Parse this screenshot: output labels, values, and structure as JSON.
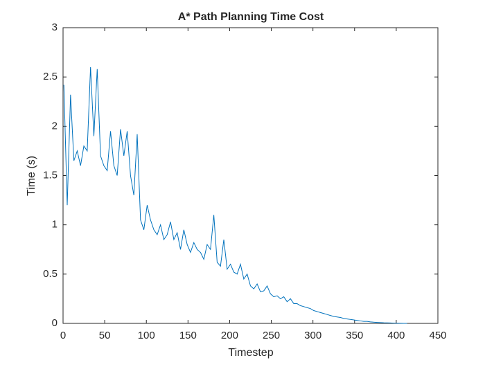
{
  "chart_data": {
    "type": "line",
    "title": "A* Path Planning Time Cost",
    "xlabel": "Timestep",
    "ylabel": "Time (s)",
    "color": "#0072bd",
    "grid": false,
    "x": [
      1,
      5,
      9,
      13,
      17,
      21,
      25,
      29,
      33,
      37,
      41,
      45,
      49,
      53,
      57,
      61,
      65,
      69,
      73,
      77,
      81,
      85,
      89,
      93,
      97,
      101,
      105,
      109,
      113,
      117,
      121,
      125,
      129,
      133,
      137,
      141,
      145,
      149,
      153,
      157,
      161,
      165,
      169,
      173,
      177,
      181,
      185,
      189,
      193,
      197,
      201,
      205,
      209,
      213,
      217,
      221,
      225,
      229,
      233,
      237,
      241,
      245,
      249,
      253,
      257,
      261,
      265,
      269,
      273,
      277,
      281,
      285,
      289,
      293,
      297,
      301,
      305,
      309,
      313,
      317,
      321,
      325,
      329,
      333,
      337,
      341,
      345,
      349,
      353,
      357,
      361,
      365,
      369,
      373,
      377,
      381,
      385,
      389,
      393,
      397,
      401,
      405,
      409,
      413
    ],
    "values": [
      2.42,
      1.2,
      2.32,
      1.65,
      1.75,
      1.6,
      1.8,
      1.75,
      2.6,
      1.9,
      2.58,
      1.7,
      1.6,
      1.55,
      1.95,
      1.6,
      1.5,
      1.97,
      1.7,
      1.95,
      1.5,
      1.3,
      1.92,
      1.05,
      0.95,
      1.2,
      1.05,
      0.95,
      0.9,
      1.0,
      0.85,
      0.9,
      1.03,
      0.85,
      0.92,
      0.75,
      0.95,
      0.8,
      0.72,
      0.82,
      0.75,
      0.72,
      0.65,
      0.8,
      0.75,
      1.1,
      0.62,
      0.58,
      0.85,
      0.55,
      0.6,
      0.52,
      0.5,
      0.6,
      0.45,
      0.5,
      0.38,
      0.35,
      0.4,
      0.32,
      0.33,
      0.38,
      0.3,
      0.27,
      0.28,
      0.25,
      0.27,
      0.22,
      0.25,
      0.2,
      0.2,
      0.18,
      0.17,
      0.16,
      0.15,
      0.13,
      0.12,
      0.11,
      0.1,
      0.09,
      0.08,
      0.07,
      0.065,
      0.06,
      0.05,
      0.045,
      0.04,
      0.035,
      0.03,
      0.025,
      0.02,
      0.02,
      0.015,
      0.012,
      0.01,
      0.008,
      0.006,
      0.005,
      0.004,
      0.003,
      0.002,
      0.001,
      0,
      0
    ],
    "xlim": [
      0,
      450
    ],
    "xticks": [
      0,
      50,
      100,
      150,
      200,
      250,
      300,
      350,
      400,
      450
    ],
    "ylim": [
      0,
      3
    ],
    "yticks": [
      0,
      0.5,
      1,
      1.5,
      2,
      2.5,
      3
    ]
  }
}
